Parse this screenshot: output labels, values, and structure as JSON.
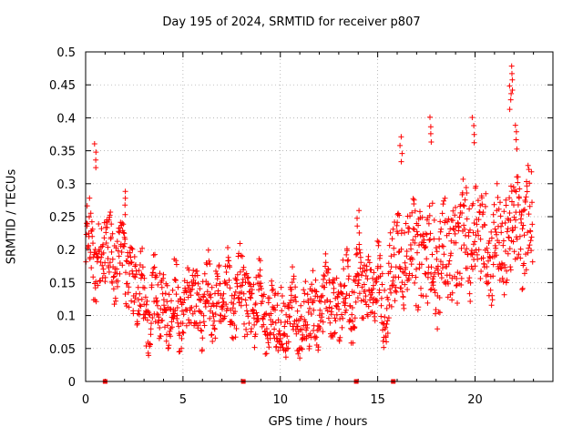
{
  "chart_data": {
    "type": "scatter",
    "title": "Day 195 of 2024, SRMTID for receiver p807",
    "xlabel": "GPS time / hours",
    "ylabel": "SRMTID / TECUs",
    "xlim": [
      0,
      24
    ],
    "ylim": [
      0,
      0.5
    ],
    "xticks": [
      0,
      5,
      10,
      15,
      20
    ],
    "yticks": [
      0,
      0.05,
      0.1,
      0.15,
      0.2,
      0.25,
      0.3,
      0.35,
      0.4,
      0.45,
      0.5
    ],
    "ytick_labels": [
      "0",
      "0.05",
      "0.1",
      "0.15",
      "0.2",
      "0.25",
      "0.3",
      "0.35",
      "0.4",
      "0.45",
      "0.5"
    ],
    "xtick_labels": [
      "0",
      "5",
      "10",
      "15",
      "20"
    ],
    "grid": true,
    "marker": "+",
    "color": "#ff0000",
    "trend_hours": [
      0,
      0.5,
      1,
      1.5,
      2,
      2.5,
      3,
      4,
      5,
      6,
      7,
      8,
      9,
      10,
      11,
      12,
      13,
      14,
      15,
      15.5,
      16,
      17,
      18,
      19,
      20,
      21,
      22,
      23
    ],
    "trend_values": [
      0.21,
      0.19,
      0.2,
      0.19,
      0.18,
      0.15,
      0.12,
      0.12,
      0.11,
      0.12,
      0.13,
      0.13,
      0.11,
      0.09,
      0.09,
      0.11,
      0.12,
      0.14,
      0.14,
      0.12,
      0.2,
      0.2,
      0.18,
      0.2,
      0.23,
      0.2,
      0.23,
      0.24
    ],
    "spread_amplitude": 0.05,
    "highlights": [
      {
        "x": 0.5,
        "y": 0.36
      },
      {
        "x": 2.0,
        "y": 0.29
      },
      {
        "x": 16.2,
        "y": 0.37
      },
      {
        "x": 17.7,
        "y": 0.4
      },
      {
        "x": 19.9,
        "y": 0.4
      },
      {
        "x": 21.9,
        "y": 0.48
      },
      {
        "x": 21.8,
        "y": 0.45
      },
      {
        "x": 22.1,
        "y": 0.39
      },
      {
        "x": 14.0,
        "y": 0.26
      }
    ],
    "baseline_markers": [
      1.0,
      8.1,
      13.9,
      15.8
    ]
  }
}
